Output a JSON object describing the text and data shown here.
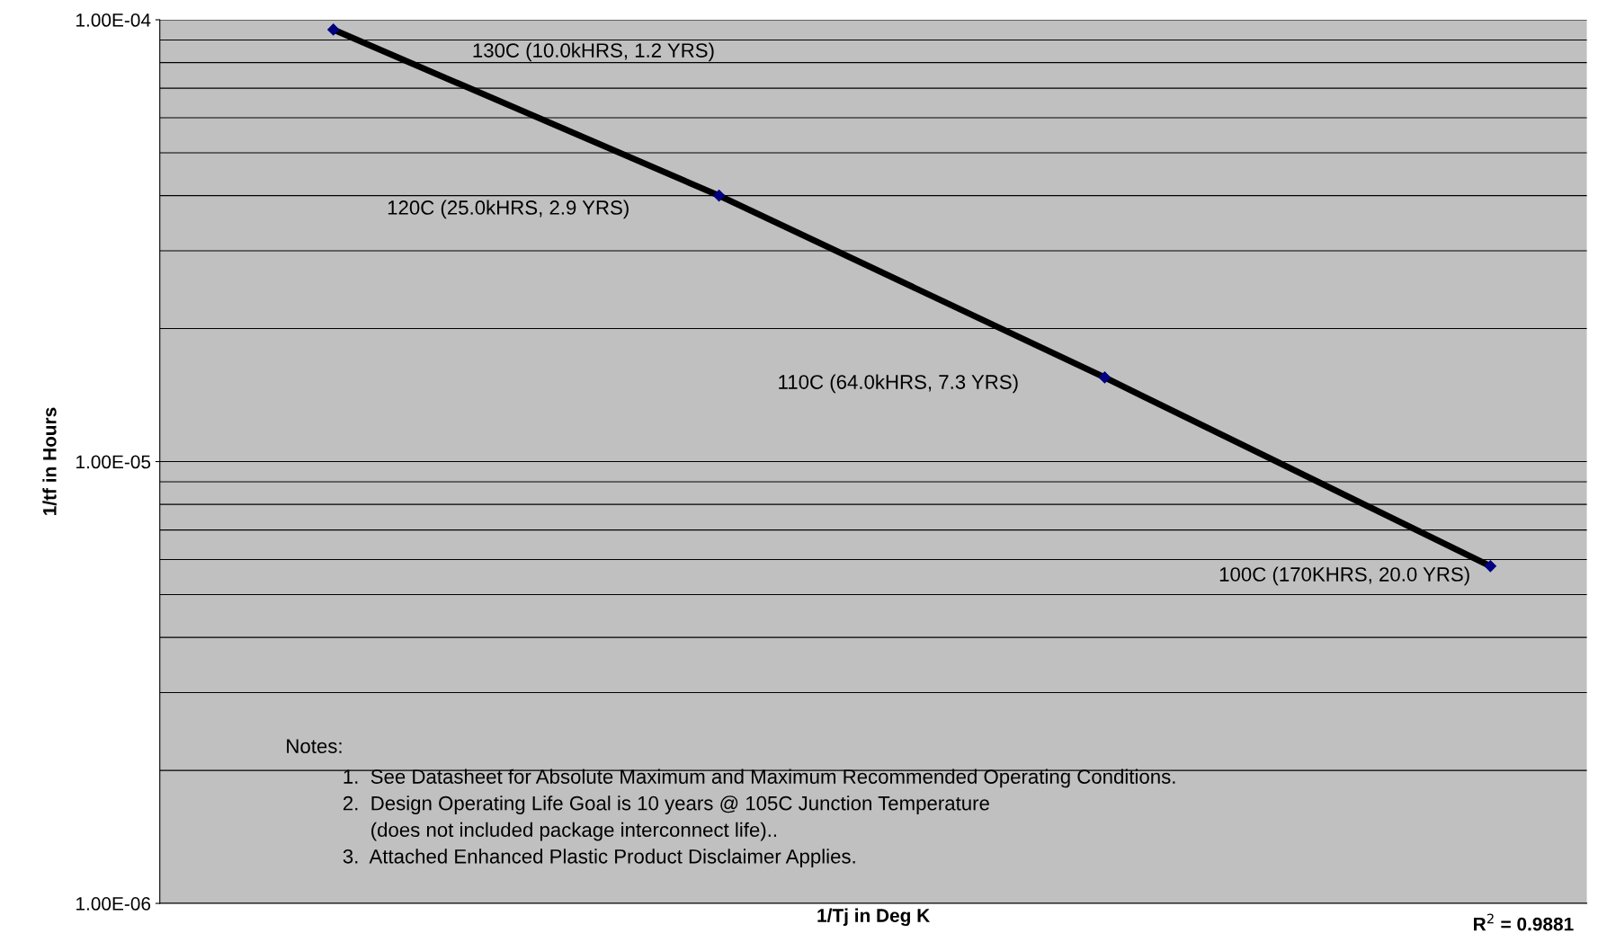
{
  "chart_data": {
    "type": "line",
    "xlabel": "1/Tj in Deg K",
    "ylabel": "1/tf in Hours",
    "categories": [
      null,
      null,
      null,
      null
    ],
    "series": [
      {
        "color": "#000000",
        "values": [
          9.5e-05,
          4e-05,
          1.55e-05,
          5.8e-06
        ]
      }
    ],
    "marker": "diamond",
    "line_style": "solid",
    "log": "y",
    "grid": "y",
    "ylim": [
      1e-06,
      0.0001
    ],
    "yticks": [
      {
        "value": 1e-06,
        "label": "1.00E-06"
      },
      {
        "value": 1e-05,
        "label": "1.00E-05"
      },
      {
        "value": 0.0001,
        "label": "1.00E-04"
      }
    ],
    "tick_labels": "y",
    "annotations": [
      "130C (10.0kHRS, 1.2 YRS)",
      "120C (25.0kHRS, 2.9 YRS)",
      "110C (64.0kHRS, 7.3 YRS)",
      "100C (170KHRS, 20.0 YRS)",
      "Notes:",
      "1.  See Datasheet for Absolute Maximum and Maximum Recommended Operating Conditions.\n2.  Design Operating Life Goal is 10 years @ 105C Junction Temperature\n     (does not included package interconnect life)..\n3.  Attached Enhanced Plastic Product Disclaimer Applies.",
      "R$^{2}$ = 0.9881"
    ]
  }
}
